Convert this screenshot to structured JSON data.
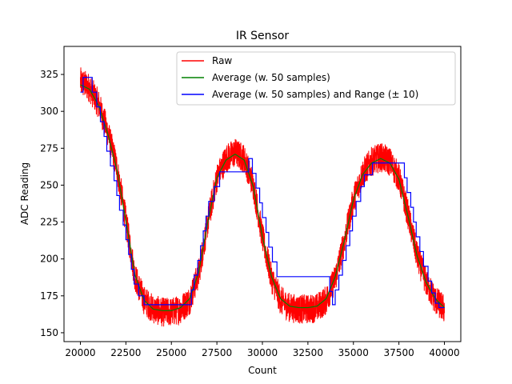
{
  "chart_data": {
    "type": "line",
    "title": "IR Sensor",
    "xlabel": "Count",
    "ylabel": "ADC Reading",
    "xlim": [
      19100,
      40900
    ],
    "ylim": [
      144,
      344
    ],
    "xticks": [
      20000,
      22500,
      25000,
      27500,
      30000,
      32500,
      35000,
      37500,
      40000
    ],
    "yticks": [
      150,
      175,
      200,
      225,
      250,
      275,
      300,
      325
    ],
    "legend_position": "top-right",
    "grid": false,
    "series": [
      {
        "name": "Raw",
        "color": "#ff0000",
        "x": [
          20000,
          20500,
          21000,
          21500,
          22000,
          22500,
          23000,
          23500,
          24000,
          24500,
          25000,
          25500,
          26000,
          26500,
          27000,
          27500,
          28000,
          28500,
          29000,
          29500,
          30000,
          30500,
          31000,
          31500,
          32000,
          32500,
          33000,
          33500,
          34000,
          34500,
          35000,
          35500,
          36000,
          36500,
          37000,
          37500,
          38000,
          38500,
          39000,
          39500,
          40000
        ],
        "values": [
          320,
          316,
          305,
          286,
          262,
          226,
          188,
          172,
          166,
          164,
          164,
          166,
          172,
          190,
          225,
          255,
          268,
          272,
          268,
          250,
          215,
          187,
          172,
          167,
          166,
          166,
          167,
          172,
          187,
          212,
          240,
          258,
          266,
          269,
          266,
          255,
          230,
          202,
          184,
          172,
          166
        ],
        "noise_amplitude": 10
      },
      {
        "name": "Average (w. 50 samples)",
        "color": "#008000",
        "x": [
          20000,
          20500,
          21000,
          21500,
          22000,
          22500,
          23000,
          23500,
          24000,
          24500,
          25000,
          25500,
          26000,
          26500,
          27000,
          27500,
          28000,
          28500,
          29000,
          29500,
          30000,
          30500,
          31000,
          31500,
          32000,
          32500,
          33000,
          33500,
          34000,
          34500,
          35000,
          35500,
          36000,
          36500,
          37000,
          37500,
          38000,
          38500,
          39000,
          39500,
          40000
        ],
        "values": [
          318,
          315,
          304,
          285,
          261,
          226,
          189,
          172,
          166,
          165,
          165,
          167,
          173,
          191,
          225,
          255,
          267,
          271,
          267,
          249,
          215,
          188,
          173,
          168,
          167,
          167,
          168,
          173,
          188,
          212,
          240,
          257,
          265,
          268,
          265,
          254,
          229,
          202,
          184,
          173,
          167
        ]
      },
      {
        "name": "Average (w. 50 samples) and Range (± 10)",
        "color": "#0000ff",
        "step_x": [
          20000,
          20150,
          20650,
          20900,
          21100,
          21300,
          21450,
          21650,
          21850,
          22000,
          22150,
          22350,
          22500,
          22650,
          22800,
          22950,
          23200,
          23500,
          26100,
          26250,
          26450,
          26600,
          26750,
          26900,
          27050,
          27350,
          27650,
          29250,
          29450,
          29650,
          29850,
          30000,
          30200,
          30350,
          30550,
          30800,
          33700,
          33850,
          34000,
          34200,
          34400,
          34600,
          34800,
          34950,
          35150,
          35400,
          35600,
          36050,
          37800,
          37950,
          38150,
          38300,
          38450,
          38650,
          38850,
          39100,
          39300,
          39500,
          39700,
          40000
        ],
        "step_values": [
          313,
          323,
          313,
          303,
          293,
          283,
          273,
          263,
          253,
          243,
          233,
          223,
          213,
          203,
          193,
          183,
          175,
          169,
          179,
          189,
          199,
          209,
          219,
          229,
          239,
          249,
          259,
          268,
          258,
          248,
          238,
          228,
          218,
          208,
          198,
          188,
          178,
          169,
          179,
          189,
          199,
          209,
          219,
          229,
          239,
          249,
          257,
          265,
          255,
          245,
          235,
          225,
          215,
          205,
          195,
          185,
          177,
          170,
          167,
          167
        ]
      }
    ]
  }
}
